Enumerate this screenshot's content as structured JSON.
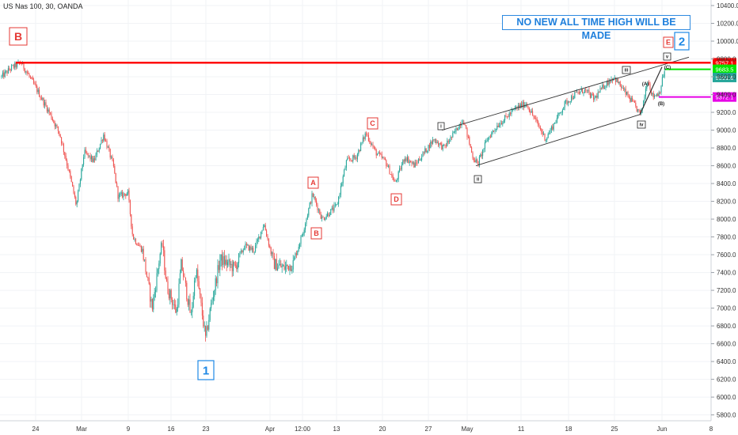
{
  "symbol_title": "US Nas 100, 30, OANDA",
  "banner_text": "NO NEW ALL TIME HIGH WILL BE MADE",
  "colors": {
    "bull": "#26a69a",
    "bear": "#ef5350",
    "red_line": "#ff0000",
    "green_line": "#00e600",
    "magenta_line": "#e600e6",
    "label_red": "#e53935",
    "label_blue": "#1e88e5",
    "channel": "#333333",
    "teal_tag": "#26a69a"
  },
  "chart_data": {
    "type": "candlestick",
    "title": "US Nas 100, 30, OANDA",
    "yaxis_ticks": [
      "10400.0",
      "10200.0",
      "10000.0",
      "9800.0",
      "9600.0",
      "9400.0",
      "9200.0",
      "9000.0",
      "8800.0",
      "8600.0",
      "8400.0",
      "8200.0",
      "8000.0",
      "7800.0",
      "7600.0",
      "7400.0",
      "7200.0",
      "7000.0",
      "6800.0",
      "6600.0",
      "6400.0",
      "6200.0",
      "6000.0",
      "5800.0"
    ],
    "ylim": [
      5750,
      10450
    ],
    "xaxis_ticks": [
      "24",
      "Mar",
      "9",
      "16",
      "23",
      "Apr",
      "12:00",
      "13",
      "20",
      "27",
      "May",
      "11",
      "18",
      "25",
      "Jun",
      "8"
    ],
    "price_series": [
      {
        "t": 0,
        "p": 9600
      },
      {
        "t": 1,
        "p": 9700
      },
      {
        "t": 2,
        "p": 9760
      },
      {
        "t": 3.5,
        "p": 9480
      },
      {
        "t": 5,
        "p": 9180
      },
      {
        "t": 6,
        "p": 8950
      },
      {
        "t": 7,
        "p": 8500
      },
      {
        "t": 7.7,
        "p": 8150
      },
      {
        "t": 8.5,
        "p": 8750
      },
      {
        "t": 9.5,
        "p": 8650
      },
      {
        "t": 10.5,
        "p": 8950
      },
      {
        "t": 11.5,
        "p": 8600
      },
      {
        "t": 12,
        "p": 8250
      },
      {
        "t": 13,
        "p": 8300
      },
      {
        "t": 13.5,
        "p": 7800
      },
      {
        "t": 14.5,
        "p": 7650
      },
      {
        "t": 15.5,
        "p": 7000
      },
      {
        "t": 16.5,
        "p": 7750
      },
      {
        "t": 17,
        "p": 7250
      },
      {
        "t": 18,
        "p": 6950
      },
      {
        "t": 18.5,
        "p": 7500
      },
      {
        "t": 19.5,
        "p": 6900
      },
      {
        "t": 20,
        "p": 7450
      },
      {
        "t": 21,
        "p": 6650
      },
      {
        "t": 21.5,
        "p": 7000
      },
      {
        "t": 22.5,
        "p": 7550
      },
      {
        "t": 24,
        "p": 7450
      },
      {
        "t": 25,
        "p": 7700
      },
      {
        "t": 26,
        "p": 7650
      },
      {
        "t": 27,
        "p": 7950
      },
      {
        "t": 28,
        "p": 7500
      },
      {
        "t": 29,
        "p": 7450
      },
      {
        "t": 30,
        "p": 7500
      },
      {
        "t": 31,
        "p": 7850
      },
      {
        "t": 32,
        "p": 8280
      },
      {
        "t": 33,
        "p": 8000
      },
      {
        "t": 34.5,
        "p": 8150
      },
      {
        "t": 35.5,
        "p": 8650
      },
      {
        "t": 36.5,
        "p": 8700
      },
      {
        "t": 37.5,
        "p": 8970
      },
      {
        "t": 38.5,
        "p": 8750
      },
      {
        "t": 39.5,
        "p": 8650
      },
      {
        "t": 40.5,
        "p": 8400
      },
      {
        "t": 41.5,
        "p": 8700
      },
      {
        "t": 42.5,
        "p": 8600
      },
      {
        "t": 43.5,
        "p": 8750
      },
      {
        "t": 44.5,
        "p": 8900
      },
      {
        "t": 45.5,
        "p": 8800
      },
      {
        "t": 46.5,
        "p": 8950
      },
      {
        "t": 47.5,
        "p": 9130
      },
      {
        "t": 48.5,
        "p": 8700
      },
      {
        "t": 49,
        "p": 8620
      },
      {
        "t": 50,
        "p": 8900
      },
      {
        "t": 51,
        "p": 9050
      },
      {
        "t": 52,
        "p": 9150
      },
      {
        "t": 53,
        "p": 9250
      },
      {
        "t": 54,
        "p": 9300
      },
      {
        "t": 55,
        "p": 9100
      },
      {
        "t": 56,
        "p": 8900
      },
      {
        "t": 57,
        "p": 9100
      },
      {
        "t": 58,
        "p": 9300
      },
      {
        "t": 59,
        "p": 9400
      },
      {
        "t": 60,
        "p": 9450
      },
      {
        "t": 61,
        "p": 9350
      },
      {
        "t": 62,
        "p": 9500
      },
      {
        "t": 63,
        "p": 9600
      },
      {
        "t": 64,
        "p": 9450
      },
      {
        "t": 65,
        "p": 9300
      },
      {
        "t": 65.8,
        "p": 9170
      },
      {
        "t": 66.5,
        "p": 9580
      },
      {
        "t": 67,
        "p": 9380
      },
      {
        "t": 67.7,
        "p": 9420
      },
      {
        "t": 68.3,
        "p": 9700
      }
    ],
    "horizontal_levels": [
      {
        "value": 9757.1,
        "label": "9757.1",
        "color_key": "red_line"
      },
      {
        "value": 9683.5,
        "label": "9683.5",
        "color_key": "green_line"
      },
      {
        "value": 9591.6,
        "label": "9591.6",
        "color_key": "teal_tag"
      },
      {
        "value": 9372.1,
        "label": "9372.1",
        "color_key": "magenta_line"
      }
    ],
    "wave_labels": [
      {
        "text": "B",
        "style": "red-box-large"
      },
      {
        "text": "1",
        "style": "blue-box-large"
      },
      {
        "text": "A",
        "style": "red-box"
      },
      {
        "text": "B",
        "style": "red-box"
      },
      {
        "text": "C",
        "style": "red-box"
      },
      {
        "text": "D",
        "style": "red-box"
      },
      {
        "text": "E",
        "style": "red-box"
      },
      {
        "text": "2",
        "style": "blue-box-large"
      },
      {
        "text": "i",
        "style": "black-small"
      },
      {
        "text": "ii",
        "style": "black-small"
      },
      {
        "text": "iii",
        "style": "black-small"
      },
      {
        "text": "iv",
        "style": "black-small"
      },
      {
        "text": "v",
        "style": "black-small"
      },
      {
        "text": "(A)",
        "style": "black-paren"
      },
      {
        "text": "(B)",
        "style": "black-paren"
      },
      {
        "text": "(C)",
        "style": "black-paren"
      }
    ]
  }
}
